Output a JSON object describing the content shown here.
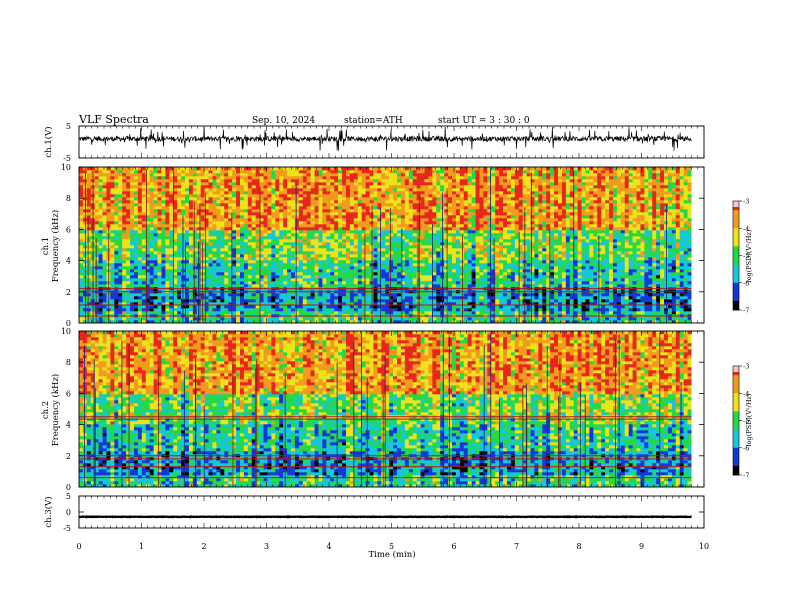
{
  "header": {
    "title": "VLF  Spectra",
    "date": "Sep. 10, 2024",
    "station": "station=ATH",
    "start": "start  UT  =    3  : 30 : 0"
  },
  "chart_data": [
    {
      "type": "line",
      "name": "ch1-waveform",
      "ylabel": "ch.1(V)",
      "xlim": [
        0,
        10
      ],
      "ylim": [
        -5,
        5
      ],
      "yticks": [
        "5",
        "-5"
      ],
      "baseline_value": 1.0,
      "noise_amplitude": 1.6
    },
    {
      "type": "heatmap",
      "name": "ch1-spectrogram",
      "ylabel_line1": "ch.1",
      "ylabel_line2": "Frequency  (kHz)",
      "xlim": [
        0,
        10
      ],
      "ylim": [
        0,
        10
      ],
      "yticks": [
        "0",
        "2",
        "4",
        "6",
        "8",
        "10"
      ],
      "data_end_min": 9.8,
      "colorbar": {
        "label": "log(PSD)(V²/Hz)",
        "range": [
          -7,
          -3
        ],
        "ticks": [
          "-3",
          "-4",
          "-5",
          "-6",
          "-7"
        ]
      },
      "lines_khz": [
        2.0,
        2.2,
        1.15,
        0.45
      ],
      "colors": {
        "red": "#e8261e",
        "orange": "#f29b1d",
        "yellow": "#ece31a",
        "green": "#24d846",
        "cyan": "#16c8d6",
        "blue": "#1438d8",
        "black": "#000000"
      }
    },
    {
      "type": "heatmap",
      "name": "ch2-spectrogram",
      "ylabel_line1": "ch.2",
      "ylabel_line2": "Frequency  (kHz)",
      "xlim": [
        0,
        10
      ],
      "ylim": [
        0,
        10
      ],
      "yticks": [
        "0",
        "2",
        "4",
        "6",
        "8",
        "10"
      ],
      "data_end_min": 9.8,
      "colorbar": {
        "label": "log(PSD)(V²/Hz)",
        "range": [
          -7,
          -3
        ],
        "ticks": [
          "-3",
          "-4",
          "-5",
          "-6",
          "-7"
        ]
      },
      "lines_khz": [
        4.5,
        4.35,
        2.0,
        1.8,
        1.3,
        0.6
      ],
      "colors": {
        "red": "#e8261e",
        "orange": "#f29b1d",
        "yellow": "#ece31a",
        "green": "#24d846",
        "cyan": "#16c8d6",
        "blue": "#1438d8",
        "black": "#000000"
      }
    },
    {
      "type": "line",
      "name": "ch3-waveform",
      "ylabel": "ch.3(V)",
      "xlim": [
        0,
        10
      ],
      "ylim": [
        -5,
        5
      ],
      "yticks": [
        "5",
        "0",
        "-5"
      ],
      "baseline_value": -1.5,
      "noise_amplitude": 0.15
    }
  ],
  "xaxis": {
    "label": "Time  (min)",
    "ticks": [
      "0",
      "1",
      "2",
      "3",
      "4",
      "5",
      "6",
      "7",
      "8",
      "9",
      "10"
    ]
  }
}
